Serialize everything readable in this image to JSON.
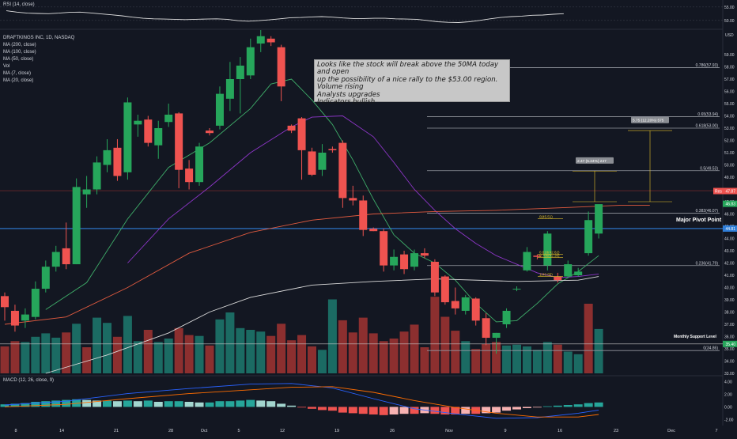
{
  "rsi_panel": {
    "title": "RSI (14, close)",
    "ticks": [
      "55.00",
      "50.00"
    ],
    "values": [
      53.6,
      53.1,
      52.7,
      52.6,
      52.5,
      52.7,
      53.0,
      53.1,
      52.8,
      52.4,
      52.1,
      51.7,
      51.2,
      50.8,
      50.6,
      50.5,
      50.4,
      50.3,
      50.4,
      50.5,
      50.6,
      50.4,
      49.9,
      49.7,
      49.9,
      50.2,
      50.6,
      51.0,
      51.1,
      51.3,
      51.4,
      51.2,
      50.9,
      50.7,
      50.7,
      50.8,
      50.8,
      50.6,
      50.5,
      50.4,
      50.0,
      49.5,
      49.3,
      49.2,
      49.5,
      50.0,
      50.6,
      51.1,
      51.4,
      51.6,
      51.9,
      52.0,
      52.3,
      52.5
    ]
  },
  "legend": {
    "symbol": "DRAFTKINGS INC, 1D, NASDAQ",
    "lines": [
      "MA (200, close)",
      "MA (100, close)",
      "MA (50, close)",
      "Vol",
      "MA (7, close)",
      "MA (20, close)"
    ]
  },
  "annotation": {
    "lines": [
      "Looks like the stock will break above the 50MA today and open",
      "up the possibility of a nice rally to the $53.00 region.",
      "Volume rising",
      "Analysts upgrades",
      "Indicators bullish"
    ]
  },
  "colors": {
    "background": "#131722",
    "up": "#26a65b",
    "down": "#ef5350",
    "vol_up": "#1b6b63",
    "vol_down": "#8c2f2f",
    "ma7": "#3fae6a",
    "ma20": "#8e36c9",
    "ma50": "#e05a3f",
    "ma100": "#d9d9d9",
    "ma200": "#4f7fd6",
    "pivot": "#2f7ed8",
    "text": "#d1d4dc"
  },
  "chart_data": {
    "type": "candlestick",
    "currency": "USD",
    "ylim": [
      33,
      61
    ],
    "y_ticks": [
      "59.00",
      "58.00",
      "57.00",
      "56.00",
      "55.00",
      "54.00",
      "53.00",
      "52.00",
      "51.00",
      "50.00",
      "49.00",
      "48.00",
      "47.00",
      "46.00",
      "45.00",
      "44.00",
      "43.00",
      "42.00",
      "41.00",
      "40.00",
      "39.00",
      "38.00",
      "37.00",
      "36.00",
      "35.00",
      "34.00",
      "33.00"
    ],
    "x_ticks": [
      "8",
      "14",
      "21",
      "28",
      "Oct",
      "5",
      "12",
      "19",
      "26",
      "Nov",
      "9",
      "16",
      "23",
      "Dec",
      "7"
    ],
    "candles": [
      {
        "o": 39.3,
        "h": 39.6,
        "l": 37.3,
        "c": 38.4
      },
      {
        "o": 38.1,
        "h": 38.6,
        "l": 36.4,
        "c": 36.9
      },
      {
        "o": 37.3,
        "h": 38.3,
        "l": 36.7,
        "c": 37.8
      },
      {
        "o": 37.6,
        "h": 40.5,
        "l": 37.4,
        "c": 39.9
      },
      {
        "o": 39.9,
        "h": 42.2,
        "l": 39.6,
        "c": 41.7
      },
      {
        "o": 41.7,
        "h": 43.4,
        "l": 41.3,
        "c": 42.9
      },
      {
        "o": 43.2,
        "h": 45.3,
        "l": 41.5,
        "c": 41.9
      },
      {
        "o": 41.9,
        "h": 48.9,
        "l": 41.9,
        "c": 48.2
      },
      {
        "o": 47.6,
        "h": 49.1,
        "l": 46.5,
        "c": 48.0
      },
      {
        "o": 48.0,
        "h": 50.7,
        "l": 47.6,
        "c": 50.2
      },
      {
        "o": 50.0,
        "h": 52.1,
        "l": 49.4,
        "c": 51.2
      },
      {
        "o": 51.4,
        "h": 52.1,
        "l": 48.7,
        "c": 49.1
      },
      {
        "o": 49.4,
        "h": 55.5,
        "l": 48.8,
        "c": 55.1
      },
      {
        "o": 53.3,
        "h": 54.1,
        "l": 52.3,
        "c": 53.6
      },
      {
        "o": 53.7,
        "h": 54.0,
        "l": 51.5,
        "c": 51.8
      },
      {
        "o": 51.6,
        "h": 53.6,
        "l": 50.5,
        "c": 53.0
      },
      {
        "o": 53.5,
        "h": 55.0,
        "l": 53.1,
        "c": 54.1
      },
      {
        "o": 54.2,
        "h": 54.3,
        "l": 48.1,
        "c": 49.6
      },
      {
        "o": 49.7,
        "h": 50.4,
        "l": 48.0,
        "c": 48.6
      },
      {
        "o": 48.6,
        "h": 51.8,
        "l": 48.3,
        "c": 51.5
      },
      {
        "o": 52.8,
        "h": 53.0,
        "l": 52.4,
        "c": 52.6
      },
      {
        "o": 53.2,
        "h": 56.4,
        "l": 52.9,
        "c": 55.8
      },
      {
        "o": 55.4,
        "h": 58.4,
        "l": 54.4,
        "c": 57.0
      },
      {
        "o": 57.0,
        "h": 58.8,
        "l": 54.2,
        "c": 58.1
      },
      {
        "o": 57.3,
        "h": 60.3,
        "l": 57.0,
        "c": 59.6
      },
      {
        "o": 59.9,
        "h": 61.0,
        "l": 59.2,
        "c": 60.5
      },
      {
        "o": 60.3,
        "h": 60.5,
        "l": 59.7,
        "c": 60.0
      },
      {
        "o": 59.6,
        "h": 59.8,
        "l": 55.2,
        "c": 56.4
      },
      {
        "o": 53.2,
        "h": 53.3,
        "l": 52.6,
        "c": 52.8
      },
      {
        "o": 53.8,
        "h": 53.9,
        "l": 48.8,
        "c": 51.2
      },
      {
        "o": 51.1,
        "h": 51.4,
        "l": 49.1,
        "c": 49.2
      },
      {
        "o": 49.6,
        "h": 51.7,
        "l": 49.1,
        "c": 51.0
      },
      {
        "o": 51.3,
        "h": 51.5,
        "l": 51.0,
        "c": 51.2
      },
      {
        "o": 51.8,
        "h": 52.0,
        "l": 46.5,
        "c": 47.3
      },
      {
        "o": 47.3,
        "h": 48.3,
        "l": 46.7,
        "c": 47.1
      },
      {
        "o": 47.1,
        "h": 47.5,
        "l": 44.2,
        "c": 44.7
      },
      {
        "o": 44.8,
        "h": 44.9,
        "l": 44.6,
        "c": 44.6
      },
      {
        "o": 44.6,
        "h": 44.8,
        "l": 41.3,
        "c": 41.8
      },
      {
        "o": 41.8,
        "h": 43.1,
        "l": 41.4,
        "c": 42.5
      },
      {
        "o": 42.7,
        "h": 43.0,
        "l": 41.1,
        "c": 41.5
      },
      {
        "o": 41.7,
        "h": 43.1,
        "l": 41.4,
        "c": 42.8
      },
      {
        "o": 42.8,
        "h": 43.2,
        "l": 42.4,
        "c": 42.6
      },
      {
        "o": 42.1,
        "h": 42.3,
        "l": 39.3,
        "c": 39.6
      },
      {
        "o": 40.9,
        "h": 41.0,
        "l": 38.6,
        "c": 38.8
      },
      {
        "o": 38.9,
        "h": 40.0,
        "l": 37.8,
        "c": 38.3
      },
      {
        "o": 38.1,
        "h": 39.4,
        "l": 37.8,
        "c": 39.2
      },
      {
        "o": 39.1,
        "h": 39.2,
        "l": 36.9,
        "c": 37.3
      },
      {
        "o": 37.5,
        "h": 37.9,
        "l": 35.3,
        "c": 35.9
      },
      {
        "o": 35.9,
        "h": 36.3,
        "l": 34.6,
        "c": 36.3
      },
      {
        "o": 37.0,
        "h": 38.3,
        "l": 36.7,
        "c": 38.1
      },
      {
        "o": 39.9,
        "h": 40.1,
        "l": 39.7,
        "c": 39.9
      },
      {
        "o": 41.4,
        "h": 43.3,
        "l": 41.3,
        "c": 42.9
      },
      {
        "o": 42.6,
        "h": 42.7,
        "l": 42.3,
        "c": 42.5
      },
      {
        "o": 41.8,
        "h": 44.6,
        "l": 41.4,
        "c": 44.4
      },
      {
        "o": 40.9,
        "h": 41.2,
        "l": 40.4,
        "c": 40.6
      },
      {
        "o": 40.9,
        "h": 42.2,
        "l": 40.8,
        "c": 41.9
      },
      {
        "o": 41.0,
        "h": 41.6,
        "l": 40.9,
        "c": 41.3
      },
      {
        "o": 42.8,
        "h": 46.2,
        "l": 42.6,
        "c": 45.5
      },
      {
        "o": 44.4,
        "h": 46.7,
        "l": 44.0,
        "c": 46.8
      }
    ],
    "volume": [
      {
        "v": 0.31,
        "up": false
      },
      {
        "v": 0.37,
        "up": false
      },
      {
        "v": 0.36,
        "up": true
      },
      {
        "v": 0.42,
        "up": true
      },
      {
        "v": 0.46,
        "up": true
      },
      {
        "v": 0.41,
        "up": true
      },
      {
        "v": 0.47,
        "up": false
      },
      {
        "v": 0.57,
        "up": true
      },
      {
        "v": 0.3,
        "up": false
      },
      {
        "v": 0.64,
        "up": true
      },
      {
        "v": 0.58,
        "up": true
      },
      {
        "v": 0.42,
        "up": false
      },
      {
        "v": 0.66,
        "up": true
      },
      {
        "v": 0.37,
        "up": true
      },
      {
        "v": 0.5,
        "up": false
      },
      {
        "v": 0.36,
        "up": true
      },
      {
        "v": 0.4,
        "up": true
      },
      {
        "v": 0.52,
        "up": false
      },
      {
        "v": 0.44,
        "up": false
      },
      {
        "v": 0.43,
        "up": true
      },
      {
        "v": 0.32,
        "up": false
      },
      {
        "v": 0.62,
        "up": true
      },
      {
        "v": 0.7,
        "up": true
      },
      {
        "v": 0.52,
        "up": true
      },
      {
        "v": 0.5,
        "up": true
      },
      {
        "v": 0.48,
        "up": true
      },
      {
        "v": 0.43,
        "up": false
      },
      {
        "v": 0.57,
        "up": false
      },
      {
        "v": 0.38,
        "up": false
      },
      {
        "v": 0.44,
        "up": false
      },
      {
        "v": 0.31,
        "up": false
      },
      {
        "v": 0.27,
        "up": true
      },
      {
        "v": 0.85,
        "up": true
      },
      {
        "v": 0.61,
        "up": false
      },
      {
        "v": 0.47,
        "up": false
      },
      {
        "v": 0.64,
        "up": false
      },
      {
        "v": 0.46,
        "up": false
      },
      {
        "v": 0.37,
        "up": false
      },
      {
        "v": 0.4,
        "up": false
      },
      {
        "v": 0.48,
        "up": false
      },
      {
        "v": 0.56,
        "up": false
      },
      {
        "v": 0.3,
        "up": false
      },
      {
        "v": 0.88,
        "up": false
      },
      {
        "v": 0.65,
        "up": false
      },
      {
        "v": 0.49,
        "up": false
      },
      {
        "v": 0.37,
        "up": true
      },
      {
        "v": 0.28,
        "up": false
      },
      {
        "v": 0.34,
        "up": false
      },
      {
        "v": 0.36,
        "up": false
      },
      {
        "v": 0.32,
        "up": true
      },
      {
        "v": 0.33,
        "up": true
      },
      {
        "v": 0.31,
        "up": true
      },
      {
        "v": 0.27,
        "up": true
      },
      {
        "v": 0.36,
        "up": true
      },
      {
        "v": 0.33,
        "up": false
      },
      {
        "v": 0.25,
        "up": true
      },
      {
        "v": 0.22,
        "up": true
      },
      {
        "v": 0.8,
        "up": false
      },
      {
        "v": 0.51,
        "up": true
      }
    ],
    "moving_averages": [
      {
        "name": "MA (7, close)",
        "color": "#3fae6a",
        "points": [
          [
            4,
            38.2
          ],
          [
            8,
            40.4
          ],
          [
            12,
            45.6
          ],
          [
            16,
            49.8
          ],
          [
            20,
            51.8
          ],
          [
            24,
            54.6
          ],
          [
            26,
            56.6
          ],
          [
            28,
            57.0
          ],
          [
            30,
            55.3
          ],
          [
            32,
            53.3
          ],
          [
            34,
            50.4
          ],
          [
            36,
            47.2
          ],
          [
            38,
            44.3
          ],
          [
            40,
            42.8
          ],
          [
            42,
            42.0
          ],
          [
            44,
            40.6
          ],
          [
            46,
            38.7
          ],
          [
            48,
            37.2
          ],
          [
            50,
            37.3
          ],
          [
            52,
            38.7
          ],
          [
            54,
            40.3
          ],
          [
            56,
            41.3
          ],
          [
            58,
            42.6
          ]
        ]
      },
      {
        "name": "MA (20, close)",
        "color": "#8e36c9",
        "points": [
          [
            12,
            42.0
          ],
          [
            16,
            45.6
          ],
          [
            20,
            48.2
          ],
          [
            24,
            51.0
          ],
          [
            28,
            53.1
          ],
          [
            30,
            53.9
          ],
          [
            33,
            54.0
          ],
          [
            36,
            52.3
          ],
          [
            38,
            50.2
          ],
          [
            40,
            48.0
          ],
          [
            42,
            46.3
          ],
          [
            44,
            44.8
          ],
          [
            46,
            43.6
          ],
          [
            48,
            42.6
          ],
          [
            50,
            41.9
          ],
          [
            52,
            41.2
          ],
          [
            54,
            40.8
          ],
          [
            56,
            40.9
          ],
          [
            58,
            41.1
          ]
        ]
      },
      {
        "name": "MA (50, close)",
        "color": "#e05a3f",
        "points": [
          [
            0,
            37.0
          ],
          [
            6,
            37.6
          ],
          [
            12,
            40.0
          ],
          [
            18,
            42.8
          ],
          [
            24,
            44.5
          ],
          [
            30,
            45.5
          ],
          [
            36,
            46.0
          ],
          [
            42,
            46.2
          ],
          [
            48,
            46.3
          ],
          [
            54,
            46.5
          ],
          [
            60,
            46.7
          ],
          [
            63,
            46.7
          ]
        ]
      },
      {
        "name": "MA (100, close)",
        "color": "#d9d9d9",
        "points": [
          [
            4,
            33.0
          ],
          [
            10,
            34.5
          ],
          [
            16,
            36.3
          ],
          [
            20,
            38.0
          ],
          [
            24,
            39.2
          ],
          [
            30,
            40.2
          ],
          [
            36,
            40.5
          ],
          [
            42,
            40.7
          ],
          [
            50,
            40.5
          ],
          [
            56,
            40.6
          ],
          [
            58,
            40.9
          ]
        ]
      }
    ],
    "horizontal_levels": [
      {
        "price": 57.93,
        "label": "0.786(57.93)"
      },
      {
        "price": 53.94,
        "label": "0.65(53.94)"
      },
      {
        "price": 53.0,
        "label": "0.618(53.00)"
      },
      {
        "price": 49.53,
        "label": "0.5(49.53)"
      },
      {
        "price": 46.07,
        "label": "0.382(46.07)"
      },
      {
        "price": 41.79,
        "label": "0.236(41.79)"
      },
      {
        "price": 34.86,
        "label": "0(34.86)"
      }
    ],
    "pivot": {
      "price": 44.81,
      "label": "Major Pivot Point"
    },
    "support": {
      "price": 35.4,
      "label": "Monthly Support Level"
    },
    "resistance_line": {
      "price": 47.9
    },
    "small_fib_labels": [
      {
        "label": "0(45.51)",
        "price": 45.6
      },
      {
        "label": "0.618(42.62)",
        "price": 42.7
      },
      {
        "label": "0.786(42.38)",
        "price": 42.45
      },
      {
        "label": "1(40.85)",
        "price": 40.9
      }
    ],
    "price_tags": [
      {
        "price": 47.87,
        "label": "47.87",
        "color": "#ef5350",
        "prefix": "Res"
      },
      {
        "price": 46.83,
        "label": "46.83",
        "color": "#26a65b"
      },
      {
        "price": 44.81,
        "label": "44.81",
        "color": "#2f7ed8"
      },
      {
        "price": 35.4,
        "label": "35.40",
        "color": "#26a65b"
      }
    ],
    "measure_labels": [
      "2.47 (5.24%) 247",
      "5.75 (12.20%) 575"
    ],
    "macd": {
      "title": "MACD (12, 26, close, 9)",
      "ticks": [
        "4.00",
        "2.00",
        "0.00",
        "-2.00"
      ],
      "ylim": [
        -2.7,
        4.8
      ],
      "hist": [
        0.4,
        0.5,
        0.6,
        0.8,
        0.9,
        1.0,
        1.1,
        1.2,
        1.1,
        1.0,
        1.0,
        0.9,
        1.0,
        0.9,
        1.0,
        0.8,
        0.9,
        0.9,
        0.8,
        0.7,
        0.7,
        0.9,
        0.9,
        1.0,
        1.1,
        1.0,
        0.9,
        0.5,
        0.2,
        -0.1,
        -0.3,
        -0.5,
        -0.6,
        -0.9,
        -1.0,
        -1.1,
        -1.2,
        -1.3,
        -1.2,
        -1.1,
        -1.1,
        -1.0,
        -1.1,
        -1.2,
        -1.2,
        -1.1,
        -1.1,
        -1.0,
        -0.9,
        -0.6,
        -0.4,
        -0.2,
        -0.1,
        0.1,
        0.2,
        0.3,
        0.4,
        0.6,
        0.7
      ],
      "macd_line": [
        [
          0,
          0.3
        ],
        [
          6,
          0.9
        ],
        [
          12,
          2.1
        ],
        [
          18,
          2.9
        ],
        [
          24,
          3.6
        ],
        [
          28,
          3.7
        ],
        [
          32,
          3.0
        ],
        [
          36,
          1.3
        ],
        [
          40,
          -0.3
        ],
        [
          44,
          -1.1
        ],
        [
          48,
          -1.8
        ],
        [
          52,
          -1.7
        ],
        [
          56,
          -1.0
        ],
        [
          58,
          -0.5
        ]
      ],
      "signal_line": [
        [
          0,
          0.0
        ],
        [
          6,
          0.4
        ],
        [
          12,
          1.3
        ],
        [
          18,
          2.1
        ],
        [
          24,
          2.7
        ],
        [
          28,
          3.1
        ],
        [
          32,
          3.2
        ],
        [
          36,
          2.3
        ],
        [
          40,
          1.0
        ],
        [
          44,
          -0.1
        ],
        [
          48,
          -1.0
        ],
        [
          52,
          -1.6
        ],
        [
          56,
          -1.6
        ],
        [
          58,
          -1.2
        ]
      ]
    }
  }
}
